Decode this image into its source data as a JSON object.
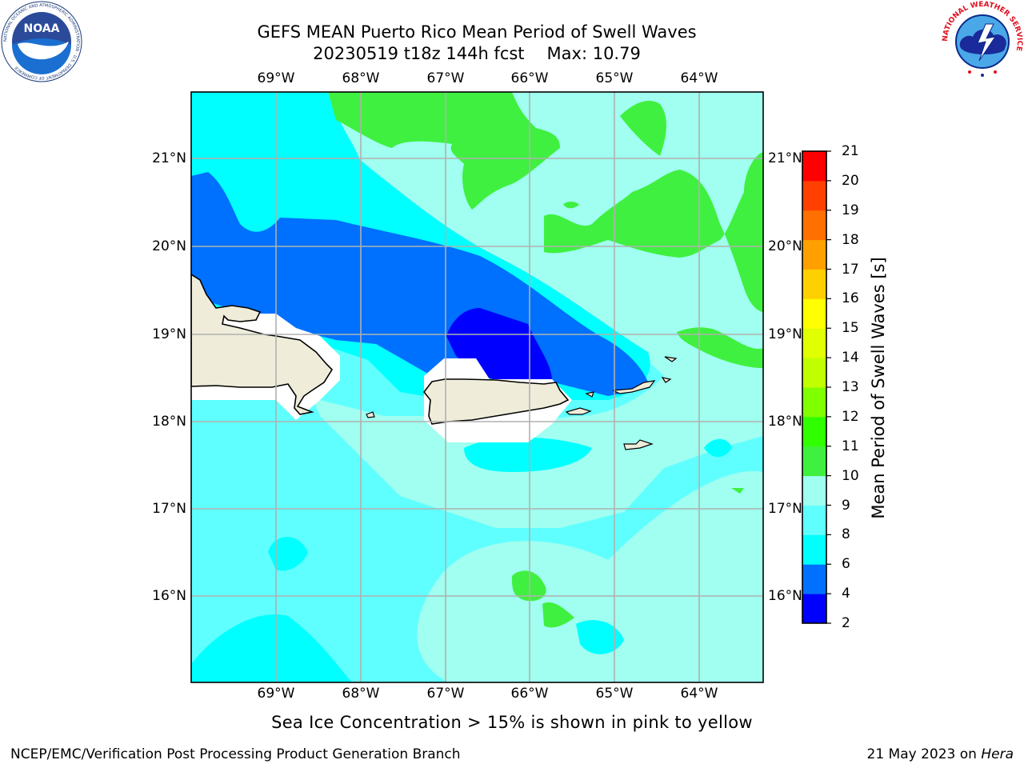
{
  "title": {
    "line1": "GEFS MEAN Puerto Rico Mean Period of Swell Waves",
    "line2_run": "20230519 t18z 144h fcst",
    "line2_max": "Max: 10.79"
  },
  "map": {
    "lon_labels": [
      "69°W",
      "68°W",
      "67°W",
      "66°W",
      "65°W",
      "64°W"
    ],
    "lat_labels": [
      "21°N",
      "20°N",
      "19°N",
      "18°N",
      "17°N",
      "16°N"
    ],
    "colors": {
      "land": "#efedda",
      "masked": "#ffffff",
      "grid": "#b0b0b0",
      "coast": "#000000"
    }
  },
  "colorbar": {
    "label": "Mean Period of Swell Waves [s]",
    "ticks": [
      "2",
      "4",
      "6",
      "8",
      "9",
      "10",
      "11",
      "12",
      "13",
      "14",
      "15",
      "16",
      "17",
      "18",
      "19",
      "20",
      "21"
    ],
    "colors": [
      "#0000ff",
      "#0070ff",
      "#00ffff",
      "#60ffff",
      "#a0fff0",
      "#40f040",
      "#30ff00",
      "#80ff00",
      "#c0ff00",
      "#e0ff00",
      "#ffff00",
      "#ffd000",
      "#ffa000",
      "#ff7000",
      "#ff4000",
      "#ff0000"
    ]
  },
  "sea_ice_note": "Sea Ice Concentration > 15% is shown in pink to yellow",
  "footer": {
    "left": "NCEP/EMC/Verification Post Processing Product Generation Branch",
    "right_date": "21 May 2023 on",
    "right_host": "Hera"
  },
  "logos": {
    "noaa_text": "NOAA",
    "noaa_ring": "NATIONAL OCEANIC AND ATMOSPHERIC ADMINISTRATION · U.S. DEPARTMENT OF COMMERCE",
    "nws_ring": "NATIONAL WEATHER SERVICE"
  }
}
